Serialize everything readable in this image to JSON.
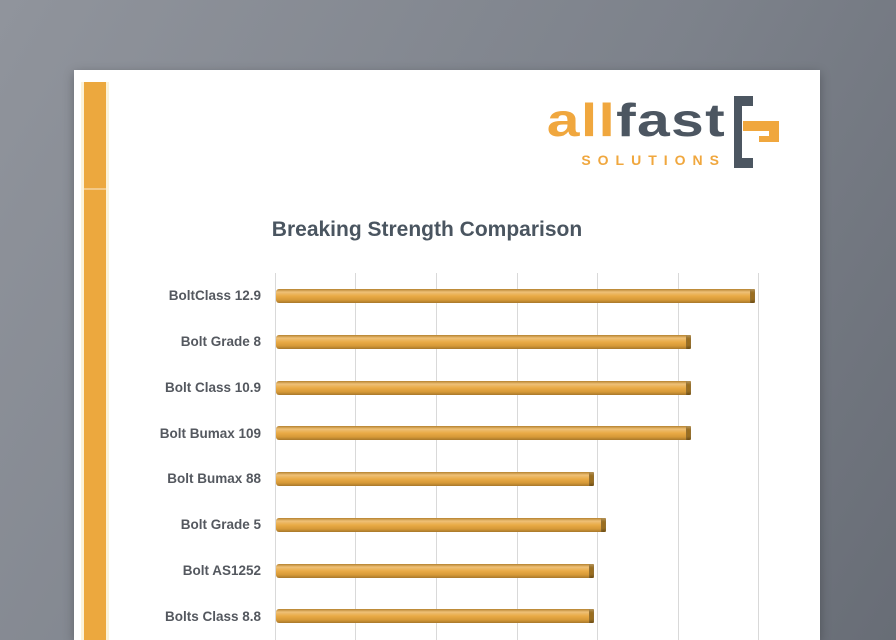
{
  "window": {
    "background_top_left": "#90949C",
    "background_bottom_right": "#686D76"
  },
  "document": {
    "paper_color": "#FFFFFF",
    "accent_stripe_color": "#ECA83E"
  },
  "logo": {
    "brand_first": "all",
    "brand_second": "fast",
    "subtitle": "SOLUTIONS",
    "color_orange": "#F0A73E",
    "color_slate": "#4C5661",
    "icon": "fastener-bracket-icon"
  },
  "chart_data": {
    "type": "bar",
    "orientation": "horizontal",
    "title": "Breaking Strength Comparison",
    "categories": [
      "BoltClass 12.9",
      "Bolt Grade 8",
      "Bolt Class 10.9",
      "Bolt Bumax 109",
      "Bolt Bumax 88",
      "Bolt Grade 5",
      "Bolt AS1252",
      "Bolts Class 8.8"
    ],
    "values": [
      1190,
      1030,
      1030,
      1030,
      790,
      820,
      790,
      790
    ],
    "xlim": [
      0,
      1200
    ],
    "x_gridline_interval": 200,
    "x_tick_labels_visible": false,
    "grid": true,
    "legend": false,
    "xlabel": "",
    "ylabel": "",
    "bar_color": "#E8A63C",
    "bar_cap_color": "#9C6F1F",
    "gridline_color": "#D9D9D9",
    "title_color": "#4A5560",
    "label_color": "#54585F",
    "note": "3D-style horizontal bars; value-axis tick labels are cropped below the visible area, values estimated from unlabeled gridlines at 200 per division."
  }
}
